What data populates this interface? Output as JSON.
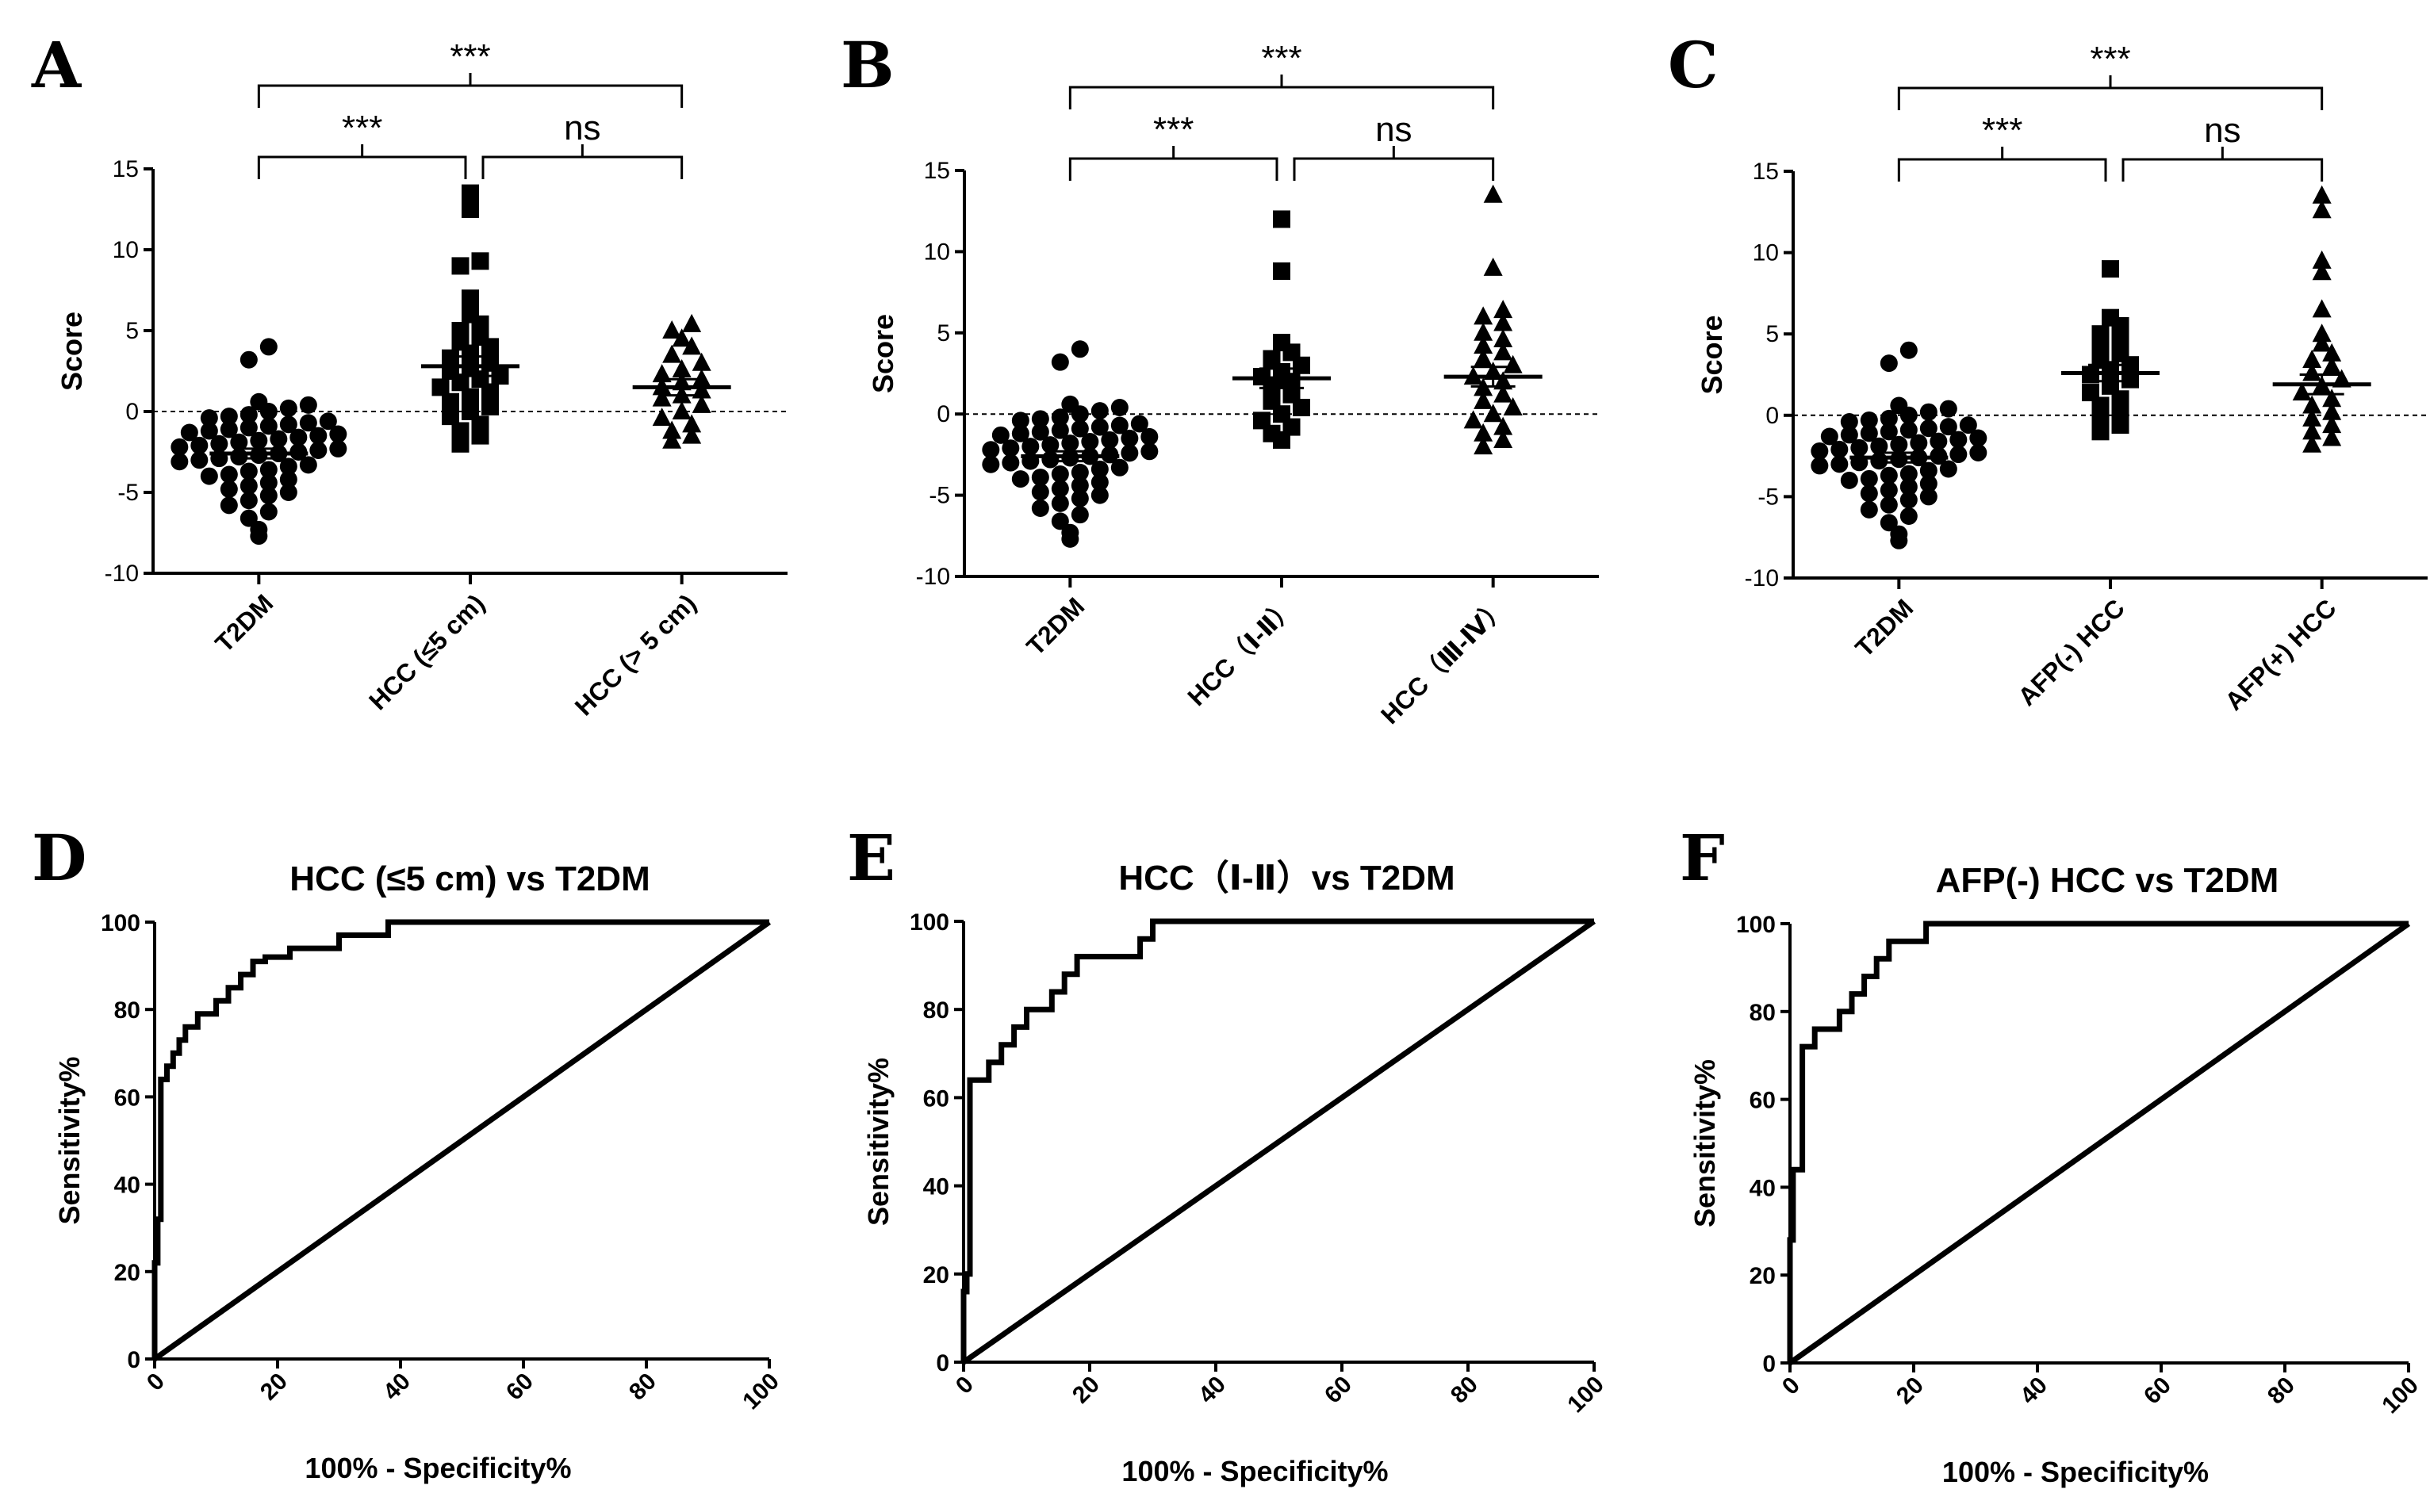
{
  "chart_data": [
    {
      "type": "scatter",
      "panel": "A",
      "ylabel": "Score",
      "xlabel": "",
      "ylim": [
        -10,
        15
      ],
      "yticks": [
        -10,
        -5,
        0,
        5,
        10,
        15
      ],
      "categories": [
        "T2DM",
        "HCC (≤5 cm)",
        "HCC (> 5 cm)"
      ],
      "markers": [
        "circle",
        "square",
        "triangle"
      ],
      "means": [
        -2.6,
        2.8,
        1.5
      ],
      "sem": [
        0.3,
        0.6,
        0.5
      ],
      "values": [
        [
          -7.7,
          -7.3,
          -6.6,
          -6.2,
          -5.8,
          -5.5,
          -5.2,
          -5.0,
          -4.8,
          -4.6,
          -4.4,
          -4.2,
          -4.0,
          -3.9,
          -3.7,
          -3.6,
          -3.4,
          -3.3,
          -3.1,
          -3.0,
          -2.9,
          -2.8,
          -2.7,
          -2.6,
          -2.5,
          -2.4,
          -2.3,
          -2.2,
          -2.1,
          -2.0,
          -1.9,
          -1.8,
          -1.7,
          -1.6,
          -1.5,
          -1.4,
          -1.3,
          -1.2,
          -1.1,
          -1.0,
          -0.9,
          -0.8,
          -0.7,
          -0.6,
          -0.4,
          -0.3,
          -0.2,
          0.0,
          0.2,
          0.4,
          0.6,
          3.2,
          4.0
        ],
        [
          -2.0,
          -1.5,
          -1.2,
          -0.8,
          -0.3,
          0.0,
          0.3,
          0.6,
          0.9,
          1.2,
          1.5,
          1.8,
          2.0,
          2.2,
          2.5,
          2.8,
          3.0,
          3.3,
          3.6,
          4.0,
          4.3,
          4.6,
          5.0,
          5.4,
          6.0,
          7.0,
          9.0,
          9.3,
          12.5,
          13.5
        ],
        [
          -1.8,
          -1.5,
          -1.2,
          -0.8,
          -0.4,
          0.0,
          0.4,
          0.8,
          1.0,
          1.3,
          1.5,
          1.8,
          2.0,
          2.3,
          2.6,
          3.0,
          3.5,
          4.0,
          4.5,
          5.0,
          5.4
        ]
      ],
      "comparisons": [
        {
          "from": "T2DM",
          "to": "HCC (≤5 cm)",
          "label": "***"
        },
        {
          "from": "HCC (≤5 cm)",
          "to": "HCC (> 5 cm)",
          "label": "ns"
        },
        {
          "from": "T2DM",
          "to": "HCC (> 5 cm)",
          "label": "***"
        }
      ]
    },
    {
      "type": "scatter",
      "panel": "B",
      "ylabel": "Score",
      "xlabel": "",
      "ylim": [
        -10,
        15
      ],
      "yticks": [
        -10,
        -5,
        0,
        5,
        10,
        15
      ],
      "categories": [
        "T2DM",
        "HCC（Ⅰ-Ⅱ）",
        "HCC（Ⅲ-Ⅳ）"
      ],
      "markers": [
        "circle",
        "square",
        "triangle"
      ],
      "means": [
        -2.6,
        2.2,
        2.3
      ],
      "sem": [
        0.3,
        0.6,
        0.6
      ],
      "values": [
        [
          -7.7,
          -7.3,
          -6.6,
          -6.2,
          -5.8,
          -5.5,
          -5.2,
          -5.0,
          -4.8,
          -4.6,
          -4.4,
          -4.2,
          -4.0,
          -3.9,
          -3.7,
          -3.6,
          -3.4,
          -3.3,
          -3.1,
          -3.0,
          -2.9,
          -2.8,
          -2.7,
          -2.6,
          -2.5,
          -2.4,
          -2.3,
          -2.2,
          -2.1,
          -2.0,
          -1.9,
          -1.8,
          -1.7,
          -1.6,
          -1.5,
          -1.4,
          -1.3,
          -1.2,
          -1.1,
          -1.0,
          -0.9,
          -0.8,
          -0.7,
          -0.6,
          -0.4,
          -0.3,
          -0.2,
          0.0,
          0.2,
          0.4,
          0.6,
          3.2,
          4.0
        ],
        [
          -1.6,
          -1.2,
          -0.8,
          -0.4,
          0.0,
          0.4,
          0.8,
          1.2,
          1.6,
          2.0,
          2.3,
          2.6,
          3.0,
          3.4,
          3.8,
          4.4,
          8.8,
          12.0
        ],
        [
          -2.0,
          -1.6,
          -1.2,
          -0.8,
          -0.4,
          0.0,
          0.4,
          0.8,
          1.2,
          1.6,
          2.0,
          2.3,
          2.6,
          3.0,
          3.4,
          3.8,
          4.2,
          4.6,
          5.0,
          5.6,
          6.0,
          6.4,
          9.0,
          13.5
        ]
      ],
      "comparisons": [
        {
          "from": "T2DM",
          "to": "HCC（Ⅰ-Ⅱ）",
          "label": "***"
        },
        {
          "from": "HCC（Ⅰ-Ⅱ）",
          "to": "HCC（Ⅲ-Ⅳ）",
          "label": "ns"
        },
        {
          "from": "T2DM",
          "to": "HCC（Ⅲ-Ⅳ）",
          "label": "***"
        }
      ]
    },
    {
      "type": "scatter",
      "panel": "C",
      "ylabel": "Score",
      "xlabel": "",
      "ylim": [
        -10,
        15
      ],
      "yticks": [
        -10,
        -5,
        0,
        5,
        10,
        15
      ],
      "categories": [
        "T2DM",
        "AFP(-) HCC",
        "AFP(+) HCC"
      ],
      "markers": [
        "circle",
        "square",
        "triangle"
      ],
      "means": [
        -2.6,
        2.6,
        1.9
      ],
      "sem": [
        0.3,
        0.5,
        0.6
      ],
      "values": [
        [
          -7.7,
          -7.3,
          -6.6,
          -6.2,
          -5.8,
          -5.5,
          -5.2,
          -5.0,
          -4.8,
          -4.6,
          -4.4,
          -4.2,
          -4.0,
          -3.9,
          -3.7,
          -3.6,
          -3.4,
          -3.3,
          -3.1,
          -3.0,
          -2.9,
          -2.8,
          -2.7,
          -2.6,
          -2.5,
          -2.4,
          -2.3,
          -2.2,
          -2.1,
          -2.0,
          -1.9,
          -1.8,
          -1.7,
          -1.6,
          -1.5,
          -1.4,
          -1.3,
          -1.2,
          -1.1,
          -1.0,
          -0.9,
          -0.8,
          -0.7,
          -0.6,
          -0.4,
          -0.3,
          -0.2,
          0.0,
          0.2,
          0.4,
          0.6,
          3.2,
          4.0
        ],
        [
          -1.0,
          -0.6,
          -0.2,
          0.2,
          0.6,
          1.0,
          1.4,
          1.8,
          2.2,
          2.5,
          2.8,
          3.1,
          3.4,
          3.8,
          4.2,
          4.6,
          5.0,
          5.5,
          6.0,
          9.0
        ],
        [
          -1.8,
          -1.4,
          -1.0,
          -0.6,
          -0.2,
          0.2,
          0.6,
          1.0,
          1.4,
          1.8,
          2.2,
          2.6,
          3.0,
          3.4,
          3.8,
          4.4,
          5.0,
          6.5,
          8.8,
          9.5,
          12.6,
          13.5
        ]
      ],
      "comparisons": [
        {
          "from": "T2DM",
          "to": "AFP(-) HCC",
          "label": "***"
        },
        {
          "from": "AFP(-) HCC",
          "to": "AFP(+) HCC",
          "label": "ns"
        },
        {
          "from": "T2DM",
          "to": "AFP(+) HCC",
          "label": "***"
        }
      ]
    },
    {
      "type": "line",
      "panel": "D",
      "title": "HCC (≤5 cm) vs T2DM",
      "xlabel": "100% - Specificity%",
      "ylabel": "Sensitivity%",
      "xlim": [
        0,
        100
      ],
      "ylim": [
        0,
        100
      ],
      "xticks": [
        0,
        20,
        40,
        60,
        80,
        100
      ],
      "yticks": [
        0,
        20,
        40,
        60,
        80,
        100
      ],
      "series": [
        {
          "name": "ROC",
          "x": [
            0,
            0,
            0.5,
            0.5,
            1,
            1,
            2,
            2,
            3,
            3,
            4,
            4,
            5,
            5,
            7,
            7,
            10,
            10,
            12,
            12,
            14,
            14,
            16,
            16,
            18,
            18,
            22,
            22,
            30,
            30,
            38,
            38,
            100
          ],
          "y": [
            0,
            22,
            22,
            32,
            32,
            64,
            64,
            67,
            67,
            70,
            70,
            73,
            73,
            76,
            76,
            79,
            79,
            82,
            82,
            85,
            85,
            88,
            88,
            91,
            91,
            92,
            92,
            94,
            94,
            97,
            97,
            100,
            100
          ]
        },
        {
          "name": "Reference",
          "x": [
            0,
            100
          ],
          "y": [
            0,
            100
          ]
        }
      ]
    },
    {
      "type": "line",
      "panel": "E",
      "title": "HCC（Ⅰ-Ⅱ）vs T2DM",
      "xlabel": "100% - Specificity%",
      "ylabel": "Sensitivity%",
      "xlim": [
        0,
        100
      ],
      "ylim": [
        0,
        100
      ],
      "xticks": [
        0,
        20,
        40,
        60,
        80,
        100
      ],
      "yticks": [
        0,
        20,
        40,
        60,
        80,
        100
      ],
      "series": [
        {
          "name": "ROC",
          "x": [
            0,
            0,
            0.5,
            0.5,
            1,
            1,
            2,
            2,
            4,
            4,
            6,
            6,
            8,
            8,
            10,
            10,
            14,
            14,
            16,
            16,
            18,
            18,
            28,
            28,
            30,
            30,
            32,
            32,
            100
          ],
          "y": [
            0,
            16,
            16,
            20,
            20,
            64,
            64,
            64,
            64,
            68,
            68,
            72,
            72,
            76,
            76,
            80,
            80,
            84,
            84,
            88,
            88,
            92,
            92,
            96,
            96,
            100,
            100,
            100,
            100
          ]
        },
        {
          "name": "Reference",
          "x": [
            0,
            100
          ],
          "y": [
            0,
            100
          ]
        }
      ]
    },
    {
      "type": "line",
      "panel": "F",
      "title": "AFP(-) HCC vs T2DM",
      "xlabel": "100% - Specificity%",
      "ylabel": "Sensitivity%",
      "xlim": [
        0,
        100
      ],
      "ylim": [
        0,
        100
      ],
      "xticks": [
        0,
        20,
        40,
        60,
        80,
        100
      ],
      "yticks": [
        0,
        20,
        40,
        60,
        80,
        100
      ],
      "series": [
        {
          "name": "ROC",
          "x": [
            0,
            0,
            0.5,
            0.5,
            1,
            1,
            2,
            2,
            4,
            4,
            6,
            6,
            8,
            8,
            10,
            10,
            12,
            12,
            14,
            14,
            16,
            16,
            20,
            20,
            22,
            22,
            100
          ],
          "y": [
            0,
            28,
            28,
            44,
            44,
            44,
            44,
            72,
            72,
            76,
            76,
            76,
            76,
            80,
            80,
            84,
            84,
            88,
            88,
            92,
            92,
            96,
            96,
            96,
            96,
            100,
            100
          ]
        },
        {
          "name": "Reference",
          "x": [
            0,
            100
          ],
          "y": [
            0,
            100
          ]
        }
      ]
    }
  ]
}
